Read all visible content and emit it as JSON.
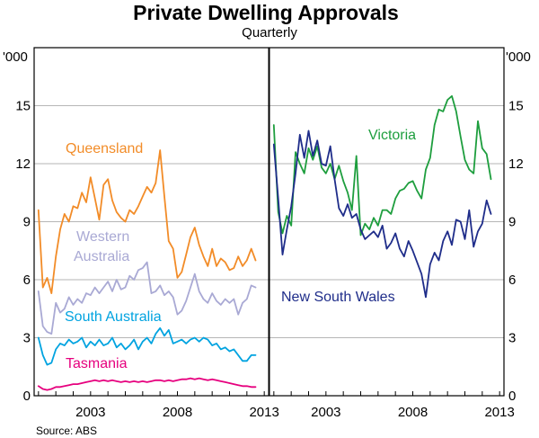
{
  "title": "Private Dwelling Approvals",
  "subtitle": "Quarterly",
  "source": "Source: ABS",
  "unit_label": "'000",
  "chart_data": [
    {
      "type": "line",
      "panel": "left",
      "ylim": [
        0,
        18
      ],
      "yticks": [
        0,
        3,
        6,
        9,
        12,
        15
      ],
      "xlim": [
        1999.75,
        2013.25
      ],
      "xticks": [
        2003,
        2008,
        2013
      ],
      "grid": true,
      "series": [
        {
          "name": "Queensland",
          "color": "#F28C28",
          "x": [
            2000.0,
            2000.25,
            2000.5,
            2000.75,
            2001.0,
            2001.25,
            2001.5,
            2001.75,
            2002.0,
            2002.25,
            2002.5,
            2002.75,
            2003.0,
            2003.25,
            2003.5,
            2003.75,
            2004.0,
            2004.25,
            2004.5,
            2004.75,
            2005.0,
            2005.25,
            2005.5,
            2005.75,
            2006.0,
            2006.25,
            2006.5,
            2006.75,
            2007.0,
            2007.25,
            2007.5,
            2007.75,
            2008.0,
            2008.25,
            2008.5,
            2008.75,
            2009.0,
            2009.25,
            2009.5,
            2009.75,
            2010.0,
            2010.25,
            2010.5,
            2010.75,
            2011.0,
            2011.25,
            2011.5,
            2011.75,
            2012.0,
            2012.25,
            2012.5
          ],
          "values": [
            9.6,
            5.6,
            6.1,
            5.3,
            7.2,
            8.6,
            9.4,
            9.0,
            9.8,
            9.7,
            10.5,
            10.0,
            11.3,
            10.2,
            9.1,
            10.9,
            11.2,
            10.1,
            9.5,
            9.2,
            9.0,
            9.6,
            9.4,
            9.8,
            10.3,
            10.8,
            10.5,
            11.0,
            12.7,
            10.3,
            8.0,
            7.6,
            6.1,
            6.4,
            7.3,
            8.2,
            8.7,
            7.8,
            7.2,
            6.7,
            7.6,
            6.7,
            7.1,
            6.9,
            6.5,
            6.6,
            7.2,
            6.7,
            7.0,
            7.6,
            7.0
          ]
        },
        {
          "name": "Western Australia",
          "color": "#A9A9D4",
          "x": [
            2000.0,
            2000.25,
            2000.5,
            2000.75,
            2001.0,
            2001.25,
            2001.5,
            2001.75,
            2002.0,
            2002.25,
            2002.5,
            2002.75,
            2003.0,
            2003.25,
            2003.5,
            2003.75,
            2004.0,
            2004.25,
            2004.5,
            2004.75,
            2005.0,
            2005.25,
            2005.5,
            2005.75,
            2006.0,
            2006.25,
            2006.5,
            2006.75,
            2007.0,
            2007.25,
            2007.5,
            2007.75,
            2008.0,
            2008.25,
            2008.5,
            2008.75,
            2009.0,
            2009.25,
            2009.5,
            2009.75,
            2010.0,
            2010.25,
            2010.5,
            2010.75,
            2011.0,
            2011.25,
            2011.5,
            2011.75,
            2012.0,
            2012.25,
            2012.5
          ],
          "values": [
            5.4,
            3.6,
            3.3,
            3.2,
            4.8,
            4.3,
            4.5,
            5.1,
            4.7,
            5.0,
            4.8,
            5.3,
            5.2,
            5.6,
            5.3,
            5.6,
            5.9,
            5.4,
            6.0,
            5.5,
            5.6,
            6.2,
            6.0,
            6.5,
            6.6,
            6.9,
            5.3,
            5.4,
            5.7,
            5.2,
            5.4,
            5.1,
            4.2,
            4.4,
            4.9,
            5.6,
            6.3,
            5.4,
            5.0,
            4.8,
            5.3,
            4.9,
            4.7,
            5.0,
            4.8,
            5.0,
            4.2,
            4.8,
            5.0,
            5.7,
            5.6
          ]
        },
        {
          "name": "South Australia",
          "color": "#00A3E0",
          "x": [
            2000.0,
            2000.25,
            2000.5,
            2000.75,
            2001.0,
            2001.25,
            2001.5,
            2001.75,
            2002.0,
            2002.25,
            2002.5,
            2002.75,
            2003.0,
            2003.25,
            2003.5,
            2003.75,
            2004.0,
            2004.25,
            2004.5,
            2004.75,
            2005.0,
            2005.25,
            2005.5,
            2005.75,
            2006.0,
            2006.25,
            2006.5,
            2006.75,
            2007.0,
            2007.25,
            2007.5,
            2007.75,
            2008.0,
            2008.25,
            2008.5,
            2008.75,
            2009.0,
            2009.25,
            2009.5,
            2009.75,
            2010.0,
            2010.25,
            2010.5,
            2010.75,
            2011.0,
            2011.25,
            2011.5,
            2011.75,
            2012.0,
            2012.25,
            2012.5
          ],
          "values": [
            3.0,
            2.1,
            1.6,
            1.7,
            2.4,
            2.7,
            2.6,
            2.9,
            2.7,
            2.8,
            3.0,
            2.5,
            2.8,
            2.6,
            2.9,
            2.6,
            2.7,
            3.0,
            2.5,
            2.7,
            2.4,
            2.6,
            2.9,
            2.4,
            2.8,
            3.0,
            2.7,
            3.2,
            3.5,
            3.1,
            3.4,
            2.7,
            2.8,
            2.9,
            2.7,
            2.9,
            3.0,
            2.8,
            3.0,
            2.9,
            2.6,
            2.7,
            2.4,
            2.5,
            2.3,
            2.4,
            2.1,
            1.8,
            1.8,
            2.1,
            2.1
          ]
        },
        {
          "name": "Tasmania",
          "color": "#E6007E",
          "x": [
            2000.0,
            2000.25,
            2000.5,
            2000.75,
            2001.0,
            2001.25,
            2001.5,
            2001.75,
            2002.0,
            2002.25,
            2002.5,
            2002.75,
            2003.0,
            2003.25,
            2003.5,
            2003.75,
            2004.0,
            2004.25,
            2004.5,
            2004.75,
            2005.0,
            2005.25,
            2005.5,
            2005.75,
            2006.0,
            2006.25,
            2006.5,
            2006.75,
            2007.0,
            2007.25,
            2007.5,
            2007.75,
            2008.0,
            2008.25,
            2008.5,
            2008.75,
            2009.0,
            2009.25,
            2009.5,
            2009.75,
            2010.0,
            2010.25,
            2010.5,
            2010.75,
            2011.0,
            2011.25,
            2011.5,
            2011.75,
            2012.0,
            2012.25,
            2012.5
          ],
          "values": [
            0.5,
            0.35,
            0.3,
            0.35,
            0.45,
            0.45,
            0.5,
            0.55,
            0.6,
            0.6,
            0.65,
            0.7,
            0.75,
            0.8,
            0.75,
            0.8,
            0.75,
            0.8,
            0.75,
            0.7,
            0.75,
            0.7,
            0.75,
            0.7,
            0.75,
            0.7,
            0.75,
            0.8,
            0.8,
            0.75,
            0.8,
            0.75,
            0.8,
            0.85,
            0.85,
            0.9,
            0.85,
            0.9,
            0.85,
            0.8,
            0.85,
            0.8,
            0.75,
            0.7,
            0.65,
            0.6,
            0.55,
            0.5,
            0.5,
            0.45,
            0.45
          ]
        }
      ]
    },
    {
      "type": "line",
      "panel": "right",
      "ylim": [
        0,
        18
      ],
      "yticks": [
        0,
        3,
        6,
        9,
        12,
        15
      ],
      "xlim": [
        1999.75,
        2013.25
      ],
      "xticks": [
        2003,
        2008,
        2013
      ],
      "grid": true,
      "series": [
        {
          "name": "Victoria",
          "color": "#1E9E3E",
          "x": [
            2000.0,
            2000.25,
            2000.5,
            2000.75,
            2001.0,
            2001.25,
            2001.5,
            2001.75,
            2002.0,
            2002.25,
            2002.5,
            2002.75,
            2003.0,
            2003.25,
            2003.5,
            2003.75,
            2004.0,
            2004.25,
            2004.5,
            2004.75,
            2005.0,
            2005.25,
            2005.5,
            2005.75,
            2006.0,
            2006.25,
            2006.5,
            2006.75,
            2007.0,
            2007.25,
            2007.5,
            2007.75,
            2008.0,
            2008.25,
            2008.5,
            2008.75,
            2009.0,
            2009.25,
            2009.5,
            2009.75,
            2010.0,
            2010.25,
            2010.5,
            2010.75,
            2011.0,
            2011.25,
            2011.5,
            2011.75,
            2012.0,
            2012.25,
            2012.5
          ],
          "values": [
            14.0,
            9.5,
            8.4,
            9.3,
            8.8,
            12.6,
            12.0,
            11.5,
            12.8,
            12.2,
            12.9,
            11.8,
            11.5,
            12.0,
            11.2,
            11.9,
            11.1,
            10.5,
            9.6,
            12.4,
            8.3,
            8.9,
            8.6,
            9.2,
            8.8,
            9.6,
            9.6,
            9.4,
            10.2,
            10.6,
            10.7,
            11.0,
            11.1,
            10.6,
            10.2,
            11.7,
            12.3,
            14.0,
            14.8,
            14.7,
            15.3,
            15.5,
            14.7,
            13.4,
            12.2,
            11.7,
            11.5,
            14.2,
            12.8,
            12.5,
            11.2
          ]
        },
        {
          "name": "New South Wales",
          "color": "#1F2D8A",
          "x": [
            2000.0,
            2000.25,
            2000.5,
            2000.75,
            2001.0,
            2001.25,
            2001.5,
            2001.75,
            2002.0,
            2002.25,
            2002.5,
            2002.75,
            2003.0,
            2003.25,
            2003.5,
            2003.75,
            2004.0,
            2004.25,
            2004.5,
            2004.75,
            2005.0,
            2005.25,
            2005.5,
            2005.75,
            2006.0,
            2006.25,
            2006.5,
            2006.75,
            2007.0,
            2007.25,
            2007.5,
            2007.75,
            2008.0,
            2008.25,
            2008.5,
            2008.75,
            2009.0,
            2009.25,
            2009.5,
            2009.75,
            2010.0,
            2010.25,
            2010.5,
            2010.75,
            2011.0,
            2011.25,
            2011.5,
            2011.75,
            2012.0,
            2012.25,
            2012.5
          ],
          "values": [
            13.0,
            10.2,
            7.3,
            8.6,
            9.8,
            11.5,
            13.5,
            12.3,
            13.7,
            12.4,
            13.2,
            12.0,
            11.9,
            12.9,
            11.2,
            9.7,
            9.3,
            9.9,
            9.2,
            9.4,
            8.6,
            8.1,
            8.3,
            8.5,
            8.2,
            8.8,
            7.6,
            7.9,
            8.4,
            7.6,
            7.2,
            8.0,
            7.5,
            6.9,
            6.3,
            5.1,
            6.8,
            7.4,
            7.0,
            8.0,
            8.5,
            7.8,
            9.1,
            9.0,
            8.1,
            9.6,
            7.7,
            8.5,
            8.9,
            10.1,
            9.4
          ]
        }
      ]
    }
  ]
}
